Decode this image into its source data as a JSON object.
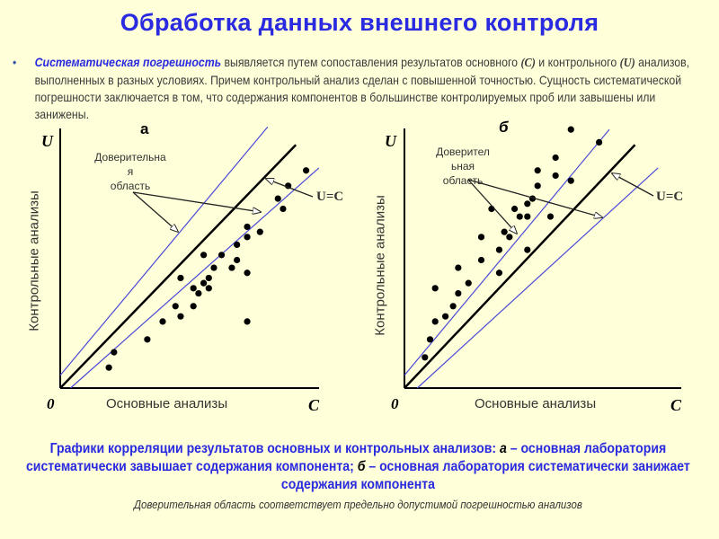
{
  "title": "Обработка данных внешнего  контроля",
  "intro": {
    "bullet": "•",
    "term": "Систематическая погрешность",
    "t1": " выявляется путем сопоставления результатов основного ",
    "var_c": "(C)",
    "t2": " и контрольного ",
    "var_u": "(U)",
    "t3": " анализов, выполненных в разных условиях. Причем контрольный анализ сделан с повышенной точностью. Сущность систематической погрешности заключается в том, что содержания компонентов в большинстве контролируемых проб или завышены или занижены."
  },
  "chart_data": [
    {
      "type": "scatter",
      "title": "а",
      "xlabel": "Основные анализы",
      "ylabel": "Контрольные анализы",
      "x_axis_end_label": "C",
      "y_axis_end_label": "U",
      "origin_label": "0",
      "annotation_lines": [
        "Доверительна",
        "я",
        "область"
      ],
      "line_label": "U=C",
      "xlim": [
        0,
        100
      ],
      "ylim": [
        0,
        100
      ],
      "grid": false,
      "reference_lines": [
        {
          "name": "U=C",
          "color": "#000000",
          "from": [
            0,
            0
          ],
          "to": [
            92,
            95
          ]
        },
        {
          "name": "upper-confidence",
          "color": "#4a4ad8",
          "from": [
            0,
            5
          ],
          "to": [
            81,
            102
          ]
        },
        {
          "name": "lower-confidence",
          "color": "#4a4ad8",
          "from": [
            4,
            0
          ],
          "to": [
            101,
            86
          ]
        }
      ],
      "points": [
        [
          19,
          8
        ],
        [
          21,
          14
        ],
        [
          34,
          19
        ],
        [
          40,
          26
        ],
        [
          47,
          28
        ],
        [
          45,
          32
        ],
        [
          47,
          43
        ],
        [
          52,
          39
        ],
        [
          52,
          32
        ],
        [
          54,
          37
        ],
        [
          56,
          41
        ],
        [
          58,
          43
        ],
        [
          58,
          39
        ],
        [
          56,
          52
        ],
        [
          60,
          47
        ],
        [
          63,
          52
        ],
        [
          67,
          47
        ],
        [
          69,
          50
        ],
        [
          69,
          56
        ],
        [
          73,
          45
        ],
        [
          73,
          26
        ],
        [
          73,
          59
        ],
        [
          73,
          63
        ],
        [
          78,
          61
        ],
        [
          85,
          74
        ],
        [
          87,
          70
        ],
        [
          89,
          79
        ],
        [
          96,
          85
        ]
      ]
    },
    {
      "type": "scatter",
      "title": "б",
      "xlabel": "Основные анализы",
      "ylabel": "Контрольные анализы",
      "x_axis_end_label": "C",
      "y_axis_end_label": "U",
      "origin_label": "0",
      "annotation_lines": [
        "Доверител",
        "ьная",
        "область"
      ],
      "line_label": "U=C",
      "xlim": [
        0,
        100
      ],
      "ylim": [
        0,
        100
      ],
      "grid": false,
      "reference_lines": [
        {
          "name": "U=C",
          "color": "#000000",
          "from": [
            0,
            0
          ],
          "to": [
            90,
            95
          ]
        },
        {
          "name": "upper-confidence",
          "color": "#4a4ad8",
          "from": [
            0,
            5
          ],
          "to": [
            80,
            101
          ]
        },
        {
          "name": "lower-confidence",
          "color": "#4a4ad8",
          "from": [
            5,
            0
          ],
          "to": [
            99,
            86
          ]
        }
      ],
      "points": [
        [
          8,
          12
        ],
        [
          10,
          19
        ],
        [
          12,
          26
        ],
        [
          12,
          39
        ],
        [
          16,
          28
        ],
        [
          19,
          32
        ],
        [
          21,
          37
        ],
        [
          21,
          47
        ],
        [
          25,
          41
        ],
        [
          30,
          50
        ],
        [
          30,
          59
        ],
        [
          34,
          70
        ],
        [
          37,
          54
        ],
        [
          37,
          45
        ],
        [
          39,
          61
        ],
        [
          41,
          59
        ],
        [
          43,
          70
        ],
        [
          45,
          67
        ],
        [
          48,
          67
        ],
        [
          48,
          72
        ],
        [
          48,
          54
        ],
        [
          50,
          74
        ],
        [
          52,
          79
        ],
        [
          52,
          85
        ],
        [
          57,
          67
        ],
        [
          59,
          90
        ],
        [
          59,
          83
        ],
        [
          65,
          101
        ],
        [
          65,
          81
        ],
        [
          76,
          96
        ]
      ]
    }
  ],
  "caption": {
    "l1a": "Графики корреляции результатов основных и контрольных анализов: ",
    "ka": "а",
    "l1b": " – основная лаборатория систематически завышает содержания компонента; ",
    "kb": "б",
    "l1c": " – основная лаборатория систематически занижает содержания компонента"
  },
  "note": "Доверительная область соответствует предельно допустимой погрешностью анализов",
  "colors": {
    "background": "#FFFFD9",
    "accent": "#2a2ae0",
    "confidence_line": "#4a4ad8"
  }
}
